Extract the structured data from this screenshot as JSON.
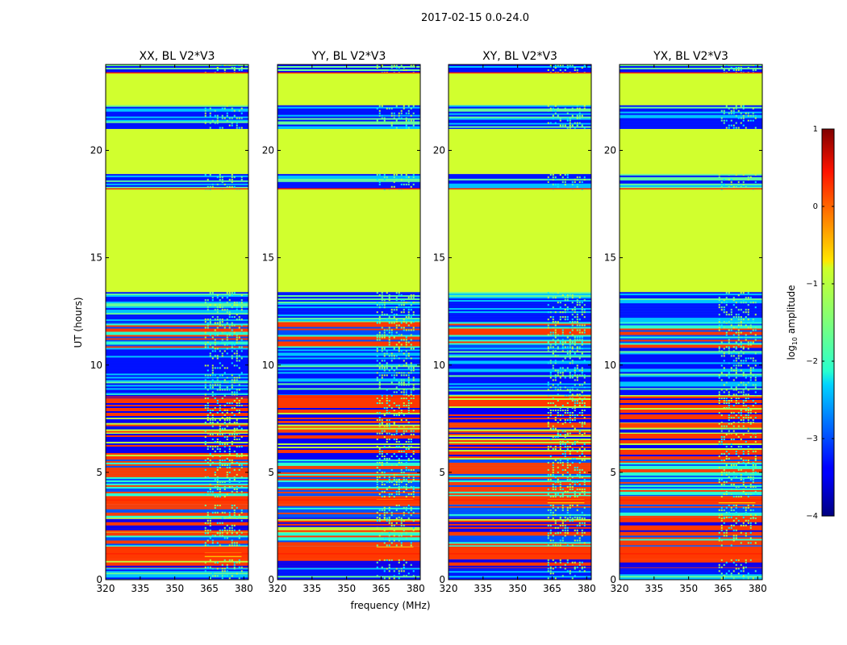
{
  "figure": {
    "suptitle": "2017-02-15 0.0-24.0",
    "xlabel": "frequency (MHz)",
    "ylabel": "UT (hours)"
  },
  "chart_data": {
    "type": "heatmap",
    "xlim": [
      320,
      382
    ],
    "ylim": [
      0,
      24
    ],
    "x_ticks": [
      320,
      335,
      350,
      365,
      380
    ],
    "x_tick_labels": [
      "320",
      "335",
      "350",
      "365",
      "380"
    ],
    "y_ticks": [
      0,
      5,
      10,
      15,
      20
    ],
    "y_tick_labels": [
      "0",
      "5",
      "10",
      "15",
      "20"
    ],
    "panels": [
      {
        "title": "XX, BL V2*V3",
        "name": "panel-xx"
      },
      {
        "title": "YY, BL V2*V3",
        "name": "panel-yy"
      },
      {
        "title": "XY, BL V2*V3",
        "name": "panel-xy"
      },
      {
        "title": "YX, BL V2*V3",
        "name": "panel-yx"
      }
    ],
    "colorbar": {
      "label_prefix": "log",
      "label_sub": "10",
      "label_suffix": " amplitude",
      "range": [
        -4,
        1
      ],
      "ticks": [
        -4,
        -3,
        -2,
        -1,
        0,
        1
      ],
      "tick_labels": [
        "−4",
        "−3",
        "−2",
        "−1",
        "0",
        "1"
      ],
      "colormap": "jet"
    },
    "rfi_band_mhz": [
      363,
      379
    ],
    "time_bands": [
      {
        "from": 0.0,
        "to": 0.55,
        "level": -2.6,
        "pattern": "noisy"
      },
      {
        "from": 0.55,
        "to": 0.95,
        "level": 0.1,
        "pattern": "stripes"
      },
      {
        "from": 0.95,
        "to": 1.55,
        "level": 0.1,
        "pattern": "solid"
      },
      {
        "from": 1.55,
        "to": 2.2,
        "level": -2.4,
        "pattern": "mixed"
      },
      {
        "from": 2.2,
        "to": 2.9,
        "level": 0.1,
        "pattern": "stripes"
      },
      {
        "from": 2.9,
        "to": 3.5,
        "level": -2.4,
        "pattern": "mixed"
      },
      {
        "from": 3.5,
        "to": 3.9,
        "level": 0.1,
        "pattern": "solid"
      },
      {
        "from": 3.9,
        "to": 5.6,
        "level": -2.2,
        "pattern": "mixed"
      },
      {
        "from": 5.6,
        "to": 6.8,
        "level": 0.1,
        "pattern": "stripes"
      },
      {
        "from": 6.8,
        "to": 7.3,
        "level": -1.2,
        "pattern": "stripes"
      },
      {
        "from": 7.3,
        "to": 8.6,
        "level": 0.1,
        "pattern": "stripes"
      },
      {
        "from": 8.6,
        "to": 10.8,
        "level": -2.8,
        "pattern": "noisy"
      },
      {
        "from": 10.8,
        "to": 12.0,
        "level": -2.2,
        "pattern": "mixed"
      },
      {
        "from": 12.0,
        "to": 13.4,
        "level": -2.6,
        "pattern": "noisy"
      },
      {
        "from": 13.4,
        "to": 18.2,
        "level": -1.1,
        "pattern": "solid"
      },
      {
        "from": 18.2,
        "to": 18.9,
        "level": -2.8,
        "pattern": "noisy"
      },
      {
        "from": 18.9,
        "to": 21.0,
        "level": -1.1,
        "pattern": "solid"
      },
      {
        "from": 21.0,
        "to": 22.1,
        "level": -2.8,
        "pattern": "noisy"
      },
      {
        "from": 22.1,
        "to": 23.6,
        "level": -1.1,
        "pattern": "solid"
      },
      {
        "from": 23.6,
        "to": 24.0,
        "level": -2.8,
        "pattern": "noisy"
      }
    ],
    "flag_lines_hours": [
      1.2,
      3.7,
      8.5,
      18.2,
      23.6
    ]
  }
}
